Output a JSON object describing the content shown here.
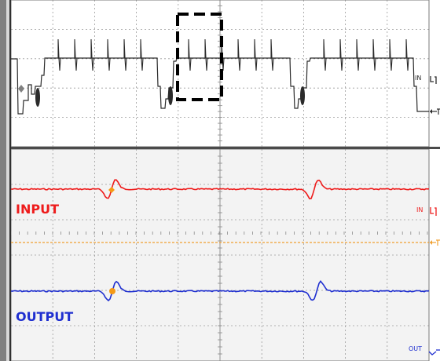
{
  "upper_panel": {
    "channel_label": "IN",
    "colors": {
      "background": "#ffffff",
      "trace": "#2b2b2b",
      "grid": "#9a9a9a",
      "marker": "#808080",
      "zoom_box": "#000000"
    }
  },
  "lower_panel": {
    "input_label": "INPUT",
    "output_label": "OUTPUT",
    "input_channel_label": "IN",
    "output_channel_label": "OUT",
    "colors": {
      "background": "#f3f3f3",
      "input": "#ee1b1b",
      "output": "#1f2fd0",
      "trigger": "#f0a030",
      "cursor": "#f59a16",
      "grid": "#9a9a9a"
    }
  }
}
